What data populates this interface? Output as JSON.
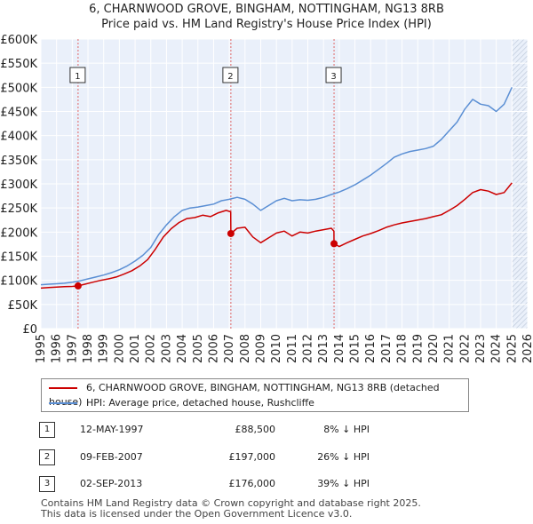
{
  "chart_data": {
    "type": "line",
    "title": "6, CHARNWOOD GROVE, BINGHAM, NOTTINGHAM, NG13 8RB",
    "subtitle": "Price paid vs. HM Land Registry's House Price Index (HPI)",
    "xlabel": "",
    "ylabel": "",
    "xlim": [
      1995,
      2026
    ],
    "ylim": [
      0,
      600000
    ],
    "grid": true,
    "x_ticks": [
      "1995",
      "1996",
      "1997",
      "1998",
      "1999",
      "2000",
      "2001",
      "2002",
      "2003",
      "2004",
      "2005",
      "2006",
      "2007",
      "2008",
      "2009",
      "2010",
      "2011",
      "2012",
      "2013",
      "2014",
      "2015",
      "2016",
      "2017",
      "2018",
      "2019",
      "2020",
      "2021",
      "2022",
      "2023",
      "2024",
      "2025",
      "2026"
    ],
    "y_ticks": [
      {
        "value": 0,
        "label": "£0"
      },
      {
        "value": 50000,
        "label": "£50K"
      },
      {
        "value": 100000,
        "label": "£100K"
      },
      {
        "value": 150000,
        "label": "£150K"
      },
      {
        "value": 200000,
        "label": "£200K"
      },
      {
        "value": 250000,
        "label": "£250K"
      },
      {
        "value": 300000,
        "label": "£300K"
      },
      {
        "value": 350000,
        "label": "£350K"
      },
      {
        "value": 400000,
        "label": "£400K"
      },
      {
        "value": 450000,
        "label": "£450K"
      },
      {
        "value": 500000,
        "label": "£500K"
      },
      {
        "value": 550000,
        "label": "£550K"
      },
      {
        "value": 600000,
        "label": "£600K"
      }
    ],
    "series": [
      {
        "name": "6, CHARNWOOD GROVE, BINGHAM, NOTTINGHAM, NG13 8RB (detached house)",
        "color": "#cc0000",
        "x": [
          1995.0,
          1995.5,
          1996.0,
          1996.5,
          1997.0,
          1997.37,
          1997.8,
          1998.3,
          1998.8,
          1999.3,
          1999.8,
          2000.3,
          2000.8,
          2001.3,
          2001.8,
          2002.3,
          2002.8,
          2003.3,
          2003.8,
          2004.3,
          2004.8,
          2005.3,
          2005.8,
          2006.3,
          2006.8,
          2007.09,
          2007.1,
          2007.5,
          2008.0,
          2008.5,
          2009.0,
          2009.5,
          2010.0,
          2010.5,
          2011.0,
          2011.5,
          2012.0,
          2012.5,
          2013.0,
          2013.5,
          2013.66,
          2013.67,
          2014.0,
          2014.5,
          2015.0,
          2015.5,
          2016.0,
          2016.5,
          2017.0,
          2017.5,
          2018.0,
          2018.5,
          2019.0,
          2019.5,
          2020.0,
          2020.5,
          2021.0,
          2021.5,
          2022.0,
          2022.5,
          2023.0,
          2023.5,
          2024.0,
          2024.5,
          2025.0
        ],
        "values": [
          84000,
          85000,
          86000,
          87000,
          87500,
          88500,
          92000,
          96000,
          100000,
          103000,
          107000,
          113000,
          120000,
          130000,
          143000,
          165000,
          190000,
          207000,
          220000,
          228000,
          230000,
          235000,
          232000,
          240000,
          245000,
          242000,
          197000,
          208000,
          210000,
          190000,
          178000,
          188000,
          198000,
          202000,
          192000,
          200000,
          198000,
          202000,
          205000,
          208000,
          202000,
          176000,
          170000,
          178000,
          185000,
          192000,
          197000,
          203000,
          210000,
          215000,
          219000,
          222000,
          225000,
          228000,
          232000,
          236000,
          245000,
          255000,
          268000,
          282000,
          288000,
          285000,
          278000,
          282000,
          302000
        ]
      },
      {
        "name": "HPI: Average price, detached house, Rushcliffe",
        "color": "#5b8fd4",
        "x": [
          1995.0,
          1995.5,
          1996.0,
          1996.5,
          1997.0,
          1997.5,
          1998.0,
          1998.5,
          1999.0,
          1999.5,
          2000.0,
          2000.5,
          2001.0,
          2001.5,
          2002.0,
          2002.5,
          2003.0,
          2003.5,
          2004.0,
          2004.5,
          2005.0,
          2005.5,
          2006.0,
          2006.5,
          2007.0,
          2007.5,
          2008.0,
          2008.5,
          2009.0,
          2009.5,
          2010.0,
          2010.5,
          2011.0,
          2011.5,
          2012.0,
          2012.5,
          2013.0,
          2013.5,
          2014.0,
          2014.5,
          2015.0,
          2015.5,
          2016.0,
          2016.5,
          2017.0,
          2017.5,
          2018.0,
          2018.5,
          2019.0,
          2019.5,
          2020.0,
          2020.5,
          2021.0,
          2021.5,
          2022.0,
          2022.5,
          2023.0,
          2023.5,
          2024.0,
          2024.5,
          2025.0
        ],
        "values": [
          91000,
          92000,
          93000,
          94000,
          96000,
          99000,
          103000,
          107000,
          111000,
          116000,
          122000,
          130000,
          140000,
          152000,
          168000,
          195000,
          215000,
          232000,
          245000,
          250000,
          252000,
          255000,
          258000,
          265000,
          268000,
          272000,
          268000,
          258000,
          245000,
          255000,
          265000,
          270000,
          265000,
          267000,
          266000,
          268000,
          272000,
          278000,
          283000,
          290000,
          298000,
          308000,
          318000,
          330000,
          342000,
          355000,
          362000,
          367000,
          370000,
          373000,
          378000,
          392000,
          410000,
          428000,
          455000,
          475000,
          465000,
          462000,
          450000,
          465000,
          500000
        ]
      }
    ],
    "annotations": [
      {
        "label": "1",
        "x": 1997.37,
        "y": 88500
      },
      {
        "label": "2",
        "x": 2007.1,
        "y": 197000
      },
      {
        "label": "3",
        "x": 2013.67,
        "y": 176000
      }
    ],
    "forecast_start": 2025.0
  },
  "legend": {
    "property_label": "6, CHARNWOOD GROVE, BINGHAM, NOTTINGHAM, NG13 8RB (detached house)",
    "hpi_label": "HPI: Average price, detached house, Rushcliffe"
  },
  "sales": [
    {
      "num": "1",
      "date": "12-MAY-1997",
      "price": "£88,500",
      "hpi": "8% ↓ HPI"
    },
    {
      "num": "2",
      "date": "09-FEB-2007",
      "price": "£197,000",
      "hpi": "26% ↓ HPI"
    },
    {
      "num": "3",
      "date": "02-SEP-2013",
      "price": "£176,000",
      "hpi": "39% ↓ HPI"
    }
  ],
  "footer": {
    "line1": "Contains HM Land Registry data © Crown copyright and database right 2025.",
    "line2": "This data is licensed under the Open Government Licence v3.0."
  },
  "colors": {
    "property": "#cc0000",
    "hpi": "#5b8fd4",
    "plot_bg": "#eaf0fa",
    "grid": "#ffffff"
  }
}
